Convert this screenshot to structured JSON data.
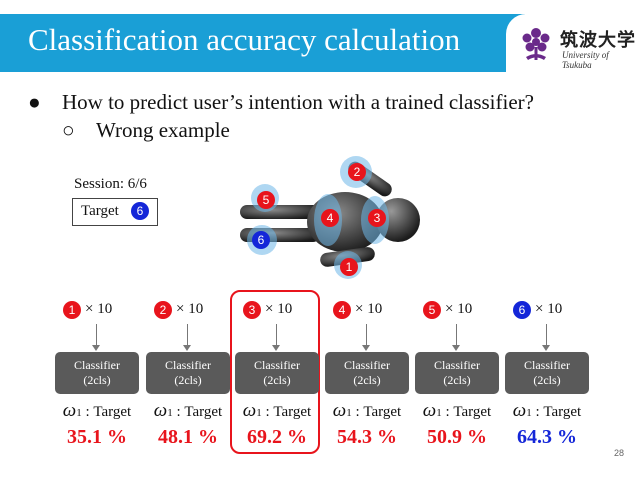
{
  "slide": {
    "title": "Classification accuracy calculation",
    "page_number": "28"
  },
  "logo": {
    "jp": "筑波大学",
    "en": "University of Tsukuba"
  },
  "bullets": {
    "level1": "How to predict user’s intention with a trained classifier?",
    "level1_mark": "●",
    "level2": "Wrong example",
    "level2_mark": "○"
  },
  "session": {
    "label": "Session: 6/6",
    "target_label": "Target",
    "target_number": "6"
  },
  "figure_markers": [
    "1",
    "2",
    "3",
    "4",
    "5",
    "6"
  ],
  "classifiers": [
    {
      "number": "1",
      "count": "× 10",
      "box_line1": "Classifier",
      "box_line2": "(2cls)",
      "omega": "ω",
      "omega_sub": "1",
      "target_text": ": Target",
      "accuracy": "35.1 %",
      "color": "#e8141c"
    },
    {
      "number": "2",
      "count": "× 10",
      "box_line1": "Classifier",
      "box_line2": "(2cls)",
      "omega": "ω",
      "omega_sub": "1",
      "target_text": ": Target",
      "accuracy": "48.1 %",
      "color": "#e8141c"
    },
    {
      "number": "3",
      "count": "× 10",
      "box_line1": "Classifier",
      "box_line2": "(2cls)",
      "omega": "ω",
      "omega_sub": "1",
      "target_text": ": Target",
      "accuracy": "69.2 %",
      "color": "#e8141c"
    },
    {
      "number": "4",
      "count": "× 10",
      "box_line1": "Classifier",
      "box_line2": "(2cls)",
      "omega": "ω",
      "omega_sub": "1",
      "target_text": ": Target",
      "accuracy": "54.3 %",
      "color": "#e8141c"
    },
    {
      "number": "5",
      "count": "× 10",
      "box_line1": "Classifier",
      "box_line2": "(2cls)",
      "omega": "ω",
      "omega_sub": "1",
      "target_text": ": Target",
      "accuracy": "50.9 %",
      "color": "#e8141c"
    },
    {
      "number": "6",
      "count": "× 10",
      "box_line1": "Classifier",
      "box_line2": "(2cls)",
      "omega": "ω",
      "omega_sub": "1",
      "target_text": ": Target",
      "accuracy": "64.3 %",
      "color": "#1426d8"
    }
  ],
  "colors": {
    "title_bar": "#1a9fd6",
    "accent_red": "#e8141c",
    "accent_blue": "#1426d8",
    "classifier_box": "#5a5a5a"
  }
}
